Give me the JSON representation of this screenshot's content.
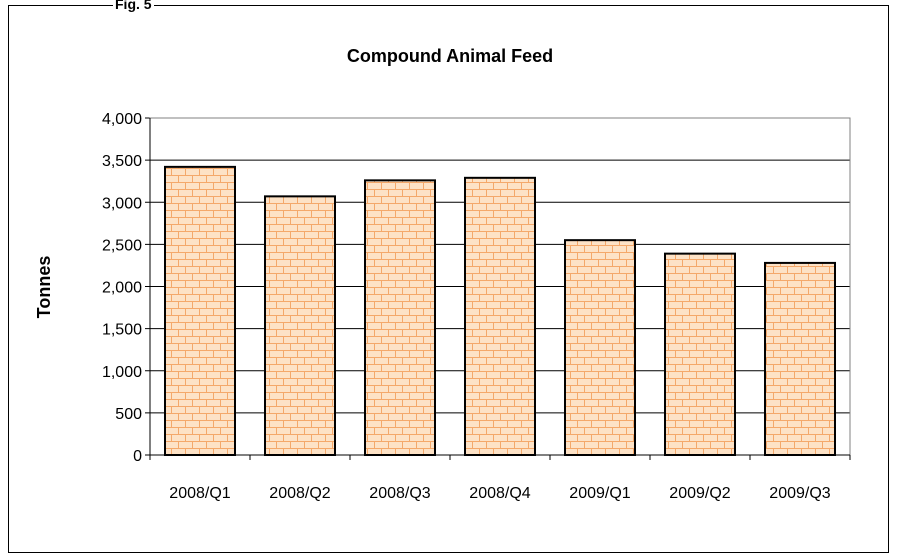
{
  "figure_label": "Fig. 5",
  "chart_data": {
    "type": "bar",
    "title": "Compound Animal Feed",
    "xlabel": "",
    "ylabel": "Tonnes",
    "categories": [
      "2008/Q1",
      "2008/Q2",
      "2008/Q3",
      "2008/Q4",
      "2009/Q1",
      "2009/Q2",
      "2009/Q3"
    ],
    "values": [
      3420,
      3070,
      3260,
      3290,
      2550,
      2390,
      2280
    ],
    "ylim": [
      0,
      4000
    ],
    "yticks": [
      0,
      500,
      1000,
      1500,
      2000,
      2500,
      3000,
      3500,
      4000
    ],
    "ytick_labels": [
      "0",
      "500",
      "1,000",
      "1,500",
      "2,000",
      "2,500",
      "3,000",
      "3,500",
      "4,000"
    ],
    "grid": true,
    "legend": "none",
    "colors": {
      "bar_fill": "#fde2c6",
      "brick_lines": "#f4a86a",
      "bar_outline": "#000000",
      "gridline": "#000000"
    }
  }
}
